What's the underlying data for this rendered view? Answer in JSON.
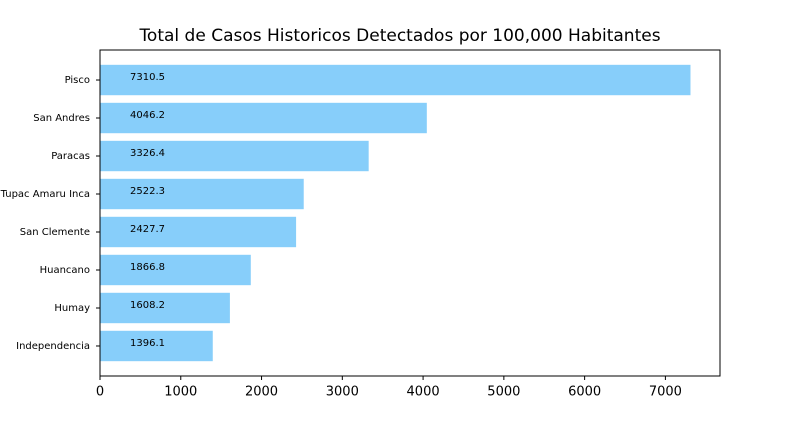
{
  "chart_data": {
    "type": "barh",
    "title": "Total de Casos Historicos Detectados por 100,000 Habitantes",
    "categories": [
      "Pisco",
      "San Andres",
      "Paracas",
      "Tupac Amaru Inca",
      "San Clemente",
      "Huancano",
      "Humay",
      "Independencia"
    ],
    "values": [
      7310.5,
      4046.2,
      3326.4,
      2522.3,
      2427.7,
      1866.8,
      1608.2,
      1396.1
    ],
    "color": "#87cefa",
    "xlim": [
      0,
      7676
    ],
    "xticks": [
      0,
      1000,
      2000,
      3000,
      4000,
      5000,
      6000,
      7000
    ]
  }
}
